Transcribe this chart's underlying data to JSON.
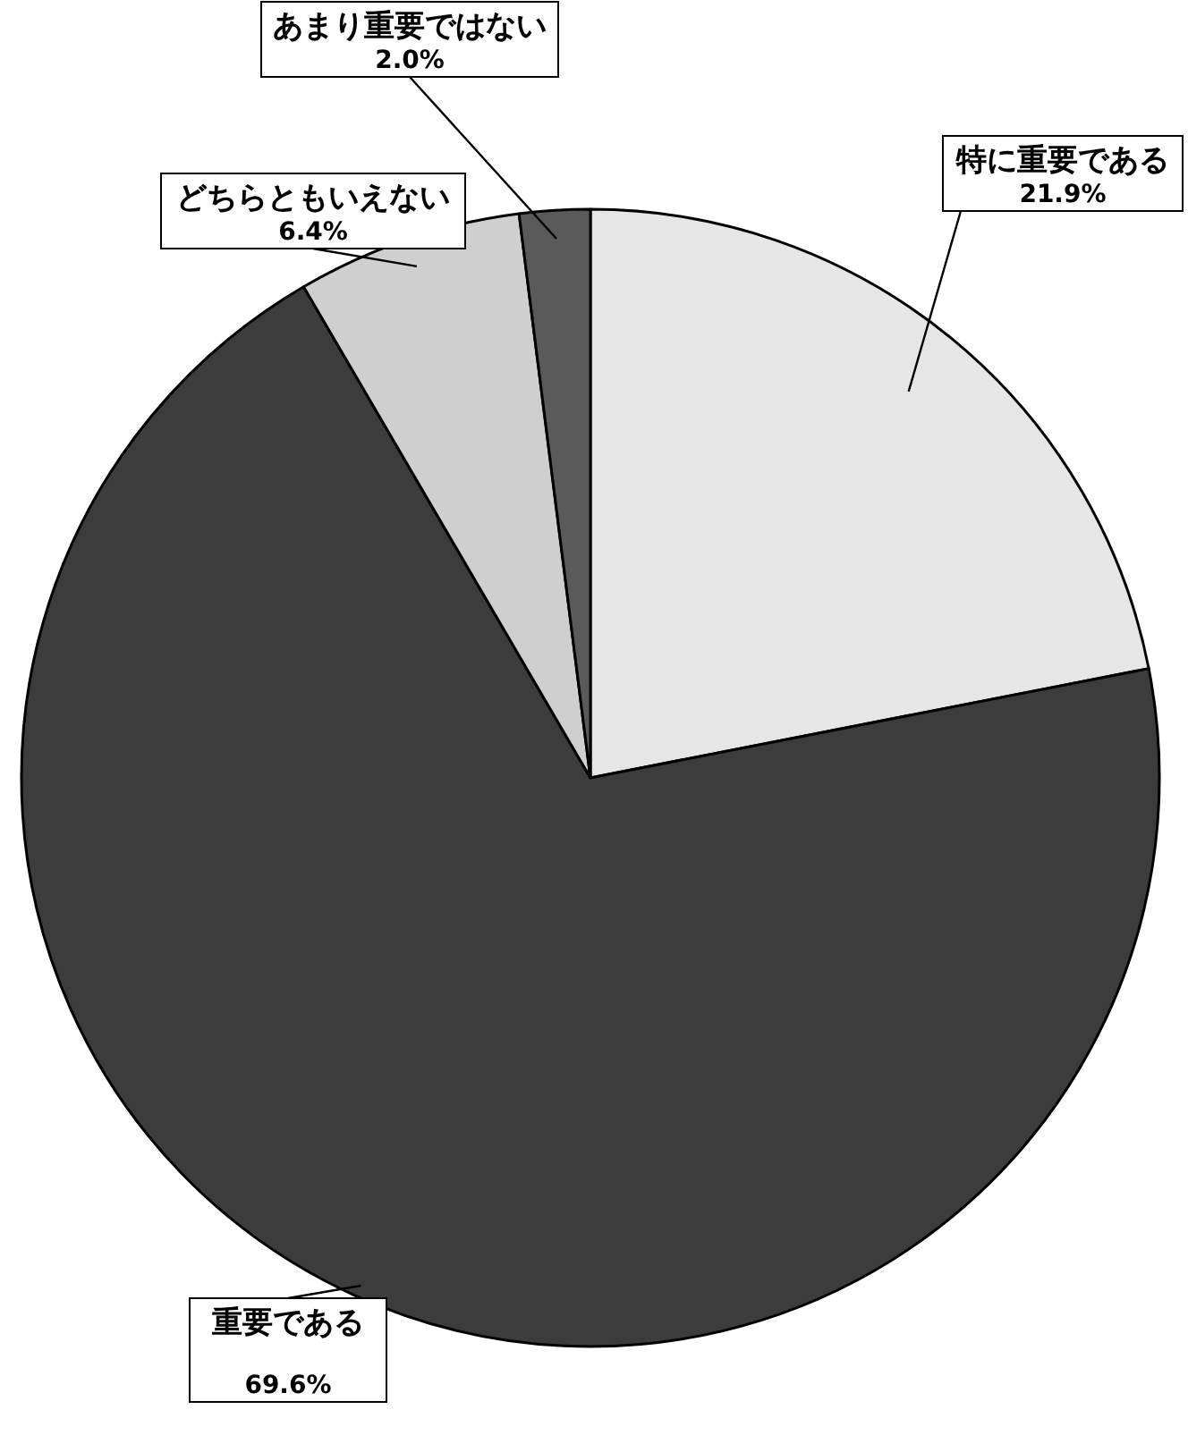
{
  "chart_data": {
    "type": "pie",
    "categories": [
      "特に重要である",
      "重要である",
      "どちらともいえない",
      "あまり重要ではない"
    ],
    "values": [
      21.9,
      69.6,
      6.4,
      2.0
    ],
    "value_labels": [
      "21.9%",
      "69.6%",
      "6.4%",
      "2.0%"
    ],
    "colors": [
      "#e6e6e6",
      "#3c3c3c",
      "#cfcfcf",
      "#5a5a5a"
    ],
    "legend": false
  }
}
